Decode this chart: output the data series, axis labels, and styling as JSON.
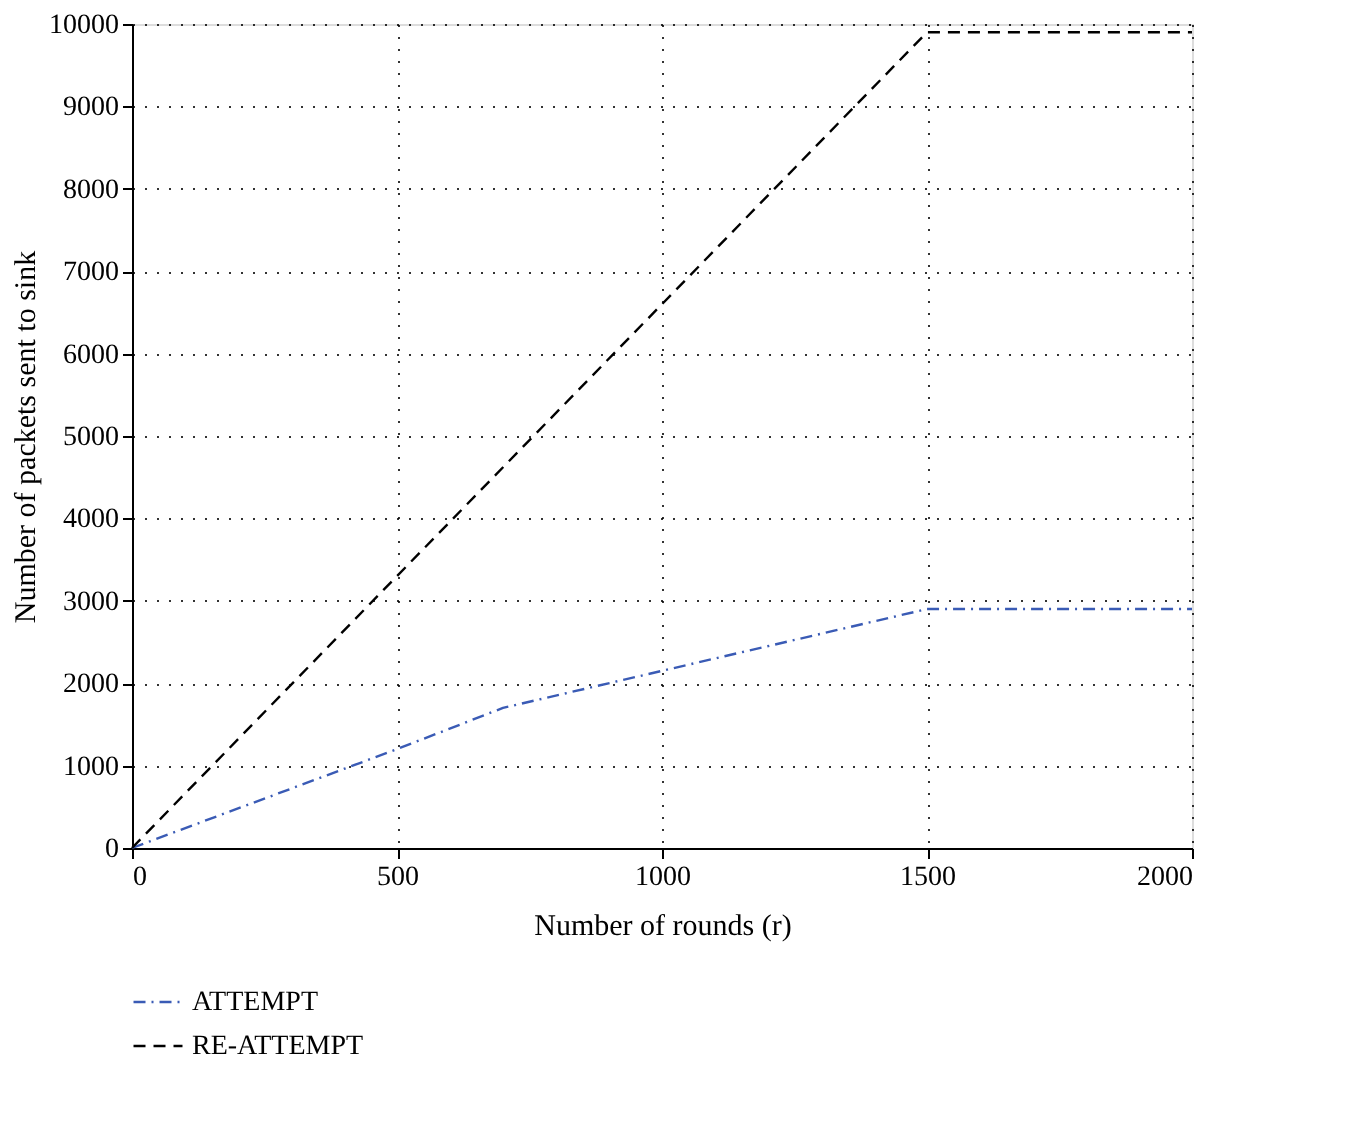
{
  "chart_data": {
    "type": "line",
    "xlabel": "Number of rounds (r)",
    "ylabel": "Number of packets sent to sink",
    "xlim": [
      0,
      2000
    ],
    "xticks": [
      0,
      500,
      1000,
      1500,
      2000
    ],
    "ylim": [
      0,
      10000
    ],
    "yticks": [
      0,
      1000,
      2000,
      3000,
      4000,
      5000,
      6000,
      7000,
      8000,
      9000,
      10000
    ],
    "grid": true,
    "legend": "bottom",
    "series": [
      {
        "name": "ATTEMPT",
        "color": "#3a5bb5",
        "line_style": "dashdot",
        "x": [
          0,
          500,
          700,
          1000,
          1500,
          2000
        ],
        "values": [
          0,
          1200,
          1700,
          2150,
          2900,
          2900
        ]
      },
      {
        "name": "RE-ATTEMPT",
        "color": "#000000",
        "line_style": "dashed",
        "x": [
          0,
          1500,
          2000
        ],
        "values": [
          0,
          9900,
          9900
        ]
      }
    ]
  }
}
